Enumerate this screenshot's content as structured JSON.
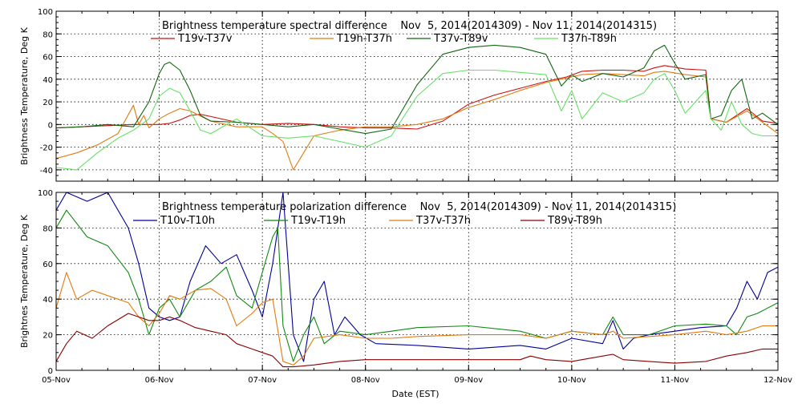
{
  "chart_data": [
    {
      "type": "line",
      "title": "Brightness temperature spectral difference    Nov  5, 2014(2014309) - Nov 11, 2014(2014315)",
      "ylabel": "Brightness Temperature, Deg K",
      "xlabel": "",
      "ylim": [
        -50,
        100
      ],
      "yticks": [
        "-40",
        "-20",
        "0",
        "20",
        "40",
        "60",
        "80",
        "100"
      ],
      "ytick_values": [
        -40,
        -20,
        0,
        20,
        40,
        60,
        80,
        100
      ],
      "xlim": [
        0,
        7
      ],
      "xtick_values": [
        0,
        1,
        2,
        3,
        4,
        5,
        6,
        7
      ],
      "grid": true,
      "legend_position": "top",
      "series": [
        {
          "name": "T19v-T37v",
          "color": "#cc1111",
          "x": [
            0,
            0.25,
            0.5,
            0.75,
            1.0,
            1.1,
            1.2,
            1.3,
            1.4,
            1.5,
            1.75,
            2.0,
            2.25,
            2.5,
            2.75,
            3.0,
            3.25,
            3.5,
            3.75,
            4.0,
            4.25,
            4.5,
            4.75,
            4.95,
            5.1,
            5.3,
            5.5,
            5.7,
            5.8,
            5.9,
            6.1,
            6.3,
            6.35,
            6.5,
            6.7,
            6.85,
            7.0
          ],
          "y": [
            -3,
            -2,
            -1,
            0,
            0,
            1,
            4,
            8,
            9,
            7,
            2,
            0,
            1,
            0,
            -2,
            -3,
            -3,
            -4,
            3,
            18,
            26,
            32,
            38,
            42,
            47,
            48,
            48,
            47,
            50,
            52,
            49,
            48,
            5,
            2,
            14,
            3,
            1
          ]
        },
        {
          "name": "T19h-T37h",
          "color": "#e07a10",
          "x": [
            0,
            0.2,
            0.4,
            0.6,
            0.75,
            0.8,
            0.85,
            0.9,
            1.0,
            1.1,
            1.2,
            1.3,
            1.5,
            1.75,
            2.0,
            2.1,
            2.2,
            2.3,
            2.5,
            2.75,
            3.0,
            3.25,
            3.5,
            3.75,
            4.0,
            4.25,
            4.5,
            4.75,
            4.95,
            5.1,
            5.3,
            5.5,
            5.7,
            5.8,
            5.9,
            6.1,
            6.3,
            6.35,
            6.5,
            6.7,
            6.85,
            7.0
          ],
          "y": [
            -30,
            -25,
            -18,
            -8,
            17,
            0,
            8,
            -3,
            5,
            10,
            14,
            12,
            3,
            -2,
            -2,
            -8,
            -15,
            -40,
            -10,
            -5,
            -2,
            -2,
            0,
            5,
            15,
            22,
            30,
            37,
            41,
            44,
            45,
            44,
            43,
            46,
            47,
            44,
            42,
            5,
            2,
            12,
            2,
            -8
          ]
        },
        {
          "name": "T37v-T89v",
          "color": "#116611",
          "x": [
            0,
            0.25,
            0.5,
            0.75,
            0.9,
            1.0,
            1.05,
            1.1,
            1.2,
            1.3,
            1.4,
            1.5,
            1.75,
            2.0,
            2.25,
            2.5,
            2.75,
            3.0,
            3.25,
            3.5,
            3.75,
            4.0,
            4.25,
            4.5,
            4.75,
            4.9,
            5.0,
            5.1,
            5.3,
            5.5,
            5.7,
            5.8,
            5.9,
            6.0,
            6.1,
            6.3,
            6.35,
            6.45,
            6.55,
            6.65,
            6.75,
            6.85,
            7.0
          ],
          "y": [
            -3,
            -2,
            0,
            -2,
            20,
            45,
            53,
            55,
            48,
            30,
            8,
            3,
            2,
            0,
            -2,
            0,
            -4,
            -8,
            -4,
            35,
            62,
            68,
            70,
            68,
            62,
            34,
            44,
            38,
            45,
            42,
            50,
            65,
            70,
            54,
            40,
            44,
            5,
            8,
            30,
            40,
            5,
            10,
            0
          ]
        },
        {
          "name": "T37h-T89h",
          "color": "#66e066",
          "x": [
            0,
            0.2,
            0.4,
            0.6,
            0.75,
            0.9,
            1.0,
            1.1,
            1.2,
            1.3,
            1.4,
            1.5,
            1.75,
            2.0,
            2.25,
            2.5,
            2.75,
            3.0,
            3.25,
            3.5,
            3.75,
            4.0,
            4.25,
            4.5,
            4.75,
            4.9,
            5.0,
            5.1,
            5.3,
            5.5,
            5.7,
            5.8,
            5.9,
            6.0,
            6.1,
            6.3,
            6.35,
            6.45,
            6.55,
            6.65,
            6.75,
            6.85,
            7.0
          ],
          "y": [
            -38,
            -40,
            -25,
            -12,
            -5,
            5,
            25,
            32,
            28,
            12,
            -5,
            -8,
            5,
            -10,
            -12,
            -10,
            -15,
            -20,
            -10,
            25,
            45,
            48,
            48,
            46,
            44,
            12,
            30,
            5,
            28,
            20,
            28,
            40,
            45,
            30,
            10,
            30,
            5,
            -5,
            20,
            0,
            -8,
            -10,
            -10
          ]
        }
      ]
    },
    {
      "type": "line",
      "title": "Brightness temperature polarization difference    Nov  5, 2014(2014309) - Nov 11, 2014(2014315)",
      "ylabel": "Brightnes Temperature, Deg K",
      "xlabel": "Date (EST)",
      "ylim": [
        0,
        100
      ],
      "yticks": [
        "0",
        "20",
        "40",
        "60",
        "80",
        "100"
      ],
      "ytick_values": [
        0,
        20,
        40,
        60,
        80,
        100
      ],
      "xlim": [
        0,
        7
      ],
      "xticks": [
        "05-Nov",
        "06-Nov",
        "07-Nov",
        "08-Nov",
        "09-Nov",
        "10-Nov",
        "11-Nov",
        "12-Nov"
      ],
      "xtick_values": [
        0,
        1,
        2,
        3,
        4,
        5,
        6,
        7
      ],
      "grid": true,
      "legend_position": "top",
      "series": [
        {
          "name": "T10v-T10h",
          "color": "#000099",
          "x": [
            0,
            0.1,
            0.3,
            0.5,
            0.7,
            0.8,
            0.9,
            1.0,
            1.1,
            1.2,
            1.3,
            1.45,
            1.6,
            1.75,
            1.9,
            2.0,
            2.1,
            2.2,
            2.3,
            2.4,
            2.5,
            2.6,
            2.7,
            2.8,
            2.95,
            3.1,
            3.5,
            4.0,
            4.5,
            4.75,
            5.0,
            5.3,
            5.4,
            5.5,
            5.6,
            5.75,
            6.0,
            6.25,
            6.5,
            6.6,
            6.7,
            6.8,
            6.9,
            7.0
          ],
          "y": [
            90,
            100,
            95,
            100,
            80,
            60,
            35,
            30,
            28,
            30,
            50,
            70,
            60,
            65,
            45,
            30,
            60,
            100,
            20,
            5,
            40,
            50,
            20,
            30,
            20,
            15,
            14,
            12,
            14,
            12,
            18,
            15,
            28,
            12,
            18,
            20,
            22,
            24,
            25,
            35,
            50,
            40,
            55,
            58
          ]
        },
        {
          "name": "T19v-T19h",
          "color": "#118811",
          "x": [
            0,
            0.1,
            0.3,
            0.5,
            0.7,
            0.8,
            0.9,
            1.0,
            1.1,
            1.2,
            1.35,
            1.5,
            1.65,
            1.75,
            1.9,
            2.0,
            2.1,
            2.15,
            2.2,
            2.3,
            2.4,
            2.5,
            2.6,
            2.75,
            3.0,
            3.25,
            3.5,
            4.0,
            4.5,
            4.75,
            5.0,
            5.3,
            5.4,
            5.5,
            5.75,
            6.0,
            6.3,
            6.5,
            6.6,
            6.7,
            6.8,
            6.9,
            7.0
          ],
          "y": [
            80,
            90,
            75,
            70,
            55,
            40,
            20,
            35,
            40,
            30,
            45,
            50,
            58,
            42,
            35,
            55,
            75,
            80,
            25,
            5,
            20,
            30,
            15,
            22,
            20,
            22,
            24,
            25,
            22,
            18,
            22,
            20,
            30,
            20,
            20,
            25,
            26,
            25,
            20,
            30,
            32,
            35,
            38
          ]
        },
        {
          "name": "T37v-T37h",
          "color": "#e07a10",
          "x": [
            0,
            0.1,
            0.2,
            0.35,
            0.5,
            0.7,
            0.8,
            0.9,
            1.0,
            1.1,
            1.2,
            1.35,
            1.5,
            1.65,
            1.75,
            1.9,
            2.0,
            2.1,
            2.2,
            2.3,
            2.4,
            2.5,
            2.75,
            3.0,
            3.25,
            3.5,
            4.0,
            4.5,
            4.75,
            5.0,
            5.3,
            5.4,
            5.5,
            5.75,
            6.0,
            6.3,
            6.5,
            6.7,
            6.85,
            7.0
          ],
          "y": [
            35,
            55,
            40,
            45,
            42,
            38,
            30,
            25,
            32,
            42,
            40,
            45,
            46,
            40,
            25,
            32,
            38,
            40,
            5,
            3,
            8,
            18,
            20,
            18,
            18,
            19,
            20,
            20,
            18,
            22,
            20,
            22,
            18,
            19,
            20,
            22,
            20,
            22,
            25,
            25
          ]
        },
        {
          "name": "T89v-T89h",
          "color": "#880000",
          "x": [
            0,
            0.1,
            0.2,
            0.35,
            0.5,
            0.7,
            0.8,
            0.9,
            1.0,
            1.1,
            1.2,
            1.35,
            1.5,
            1.65,
            1.75,
            1.9,
            2.0,
            2.1,
            2.2,
            2.3,
            2.5,
            2.75,
            3.0,
            3.5,
            4.0,
            4.5,
            4.6,
            4.75,
            5.0,
            5.3,
            5.4,
            5.5,
            5.75,
            6.0,
            6.3,
            6.5,
            6.7,
            6.85,
            7.0
          ],
          "y": [
            5,
            15,
            22,
            18,
            25,
            32,
            30,
            28,
            28,
            30,
            28,
            24,
            22,
            20,
            15,
            12,
            10,
            8,
            2,
            2,
            3,
            5,
            6,
            6,
            6,
            6,
            8,
            6,
            5,
            8,
            9,
            6,
            5,
            4,
            5,
            8,
            10,
            12,
            12
          ]
        }
      ]
    }
  ]
}
